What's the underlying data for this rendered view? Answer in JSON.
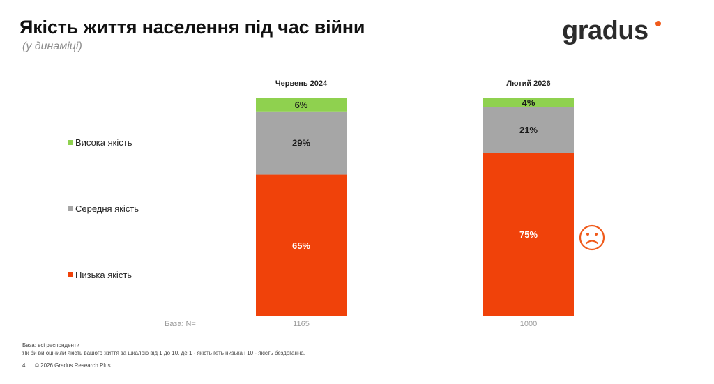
{
  "header": {
    "title": "Якість життя населення під час війни",
    "subtitle": "(у динаміці)",
    "logo_text": "gradus"
  },
  "legend": {
    "high": "Висока якість",
    "medium": "Середня якість",
    "low": "Низька якість"
  },
  "base": {
    "label": "База: N=",
    "values": [
      "1165",
      "1000"
    ]
  },
  "footer": {
    "line1": "База: всі респонденти",
    "line2": "Як би ви оцінили якість вашого життя за шкалою від 1 до 10, де 1 - якість геть низька і 10 - якість бездоганна.",
    "page": "4",
    "copyright": "© 2026 Gradus Research Plus"
  },
  "colors": {
    "high": "#8fd14f",
    "medium": "#a6a6a6",
    "low": "#f0420a",
    "sad_icon": "#f05a1a"
  },
  "icons": {
    "sad_face": "sad-face-icon"
  },
  "chart_data": {
    "type": "bar",
    "stacked": true,
    "categories": [
      "Червень 2024",
      "Лютий 2026"
    ],
    "series": [
      {
        "name": "Низька якість",
        "values": [
          65,
          75
        ],
        "labels": [
          "65%",
          "75%"
        ]
      },
      {
        "name": "Середня якість",
        "values": [
          29,
          21
        ],
        "labels": [
          "29%",
          "21%"
        ]
      },
      {
        "name": "Висока якість",
        "values": [
          6,
          4
        ],
        "labels": [
          "6%",
          "4%"
        ]
      }
    ],
    "ylim": [
      0,
      100
    ],
    "legend": "left"
  }
}
